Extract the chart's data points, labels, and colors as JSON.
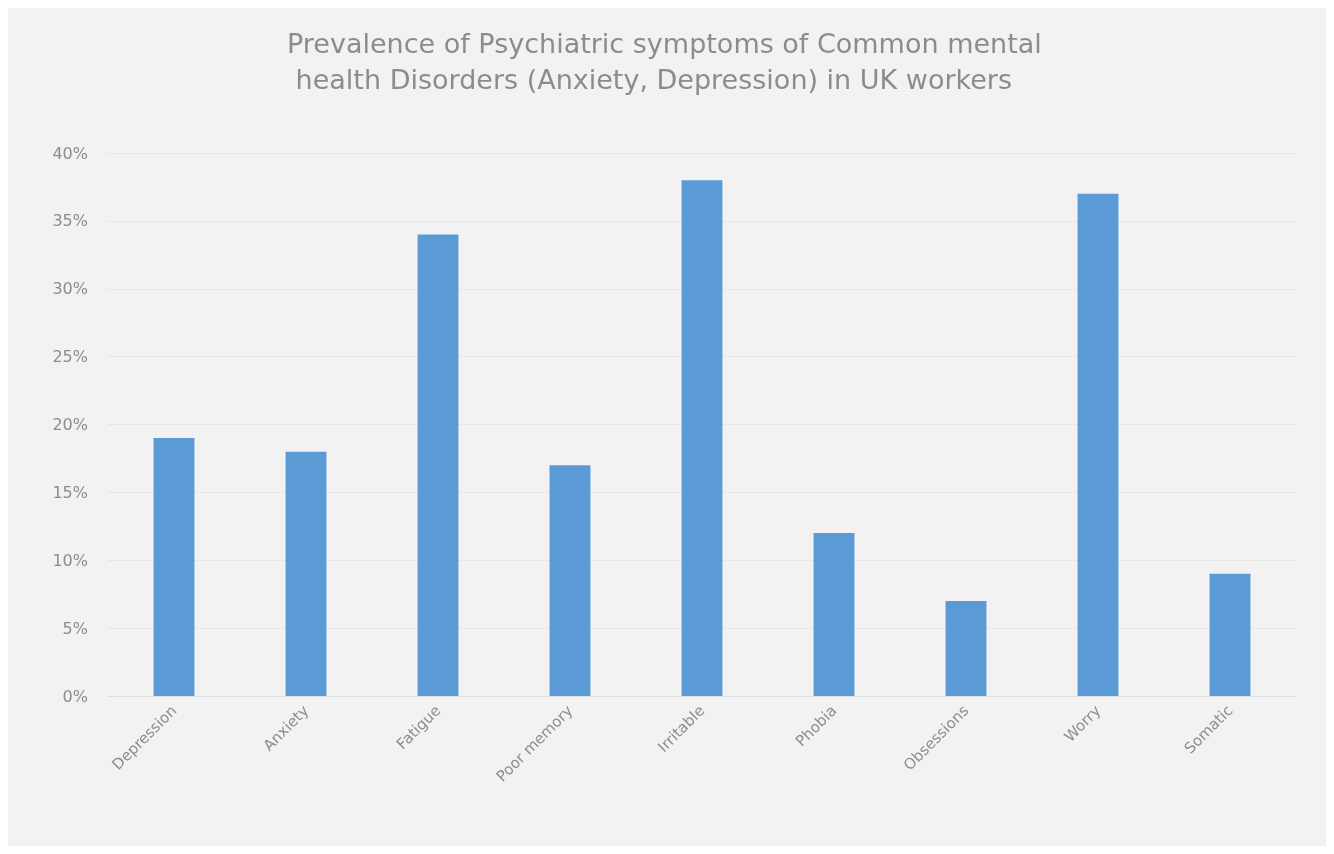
{
  "chart_data": {
    "type": "bar",
    "title": "Prevalence of Psychiatric symptoms of Common mental health Disorders (Anxiety, Depression) in UK workers",
    "categories": [
      "Depression",
      "Anxiety",
      "Fatigue",
      "Poor memory",
      "Irritable",
      "Phobia",
      "Obsessions",
      "Worry",
      "Somatic"
    ],
    "values": [
      19,
      18,
      34,
      17,
      38,
      12,
      7,
      37,
      9
    ],
    "color": "#5b9bd5",
    "ylim": [
      0,
      40
    ],
    "yticks": [
      {
        "value": 0,
        "label": "0%"
      },
      {
        "value": 5,
        "label": "5%"
      },
      {
        "value": 10,
        "label": "10%"
      },
      {
        "value": 15,
        "label": "15%"
      },
      {
        "value": 20,
        "label": "20%"
      },
      {
        "value": 25,
        "label": "25%"
      },
      {
        "value": 30,
        "label": "30%"
      },
      {
        "value": 35,
        "label": "35%"
      },
      {
        "value": 40,
        "label": "40%"
      }
    ],
    "grid": "y"
  }
}
